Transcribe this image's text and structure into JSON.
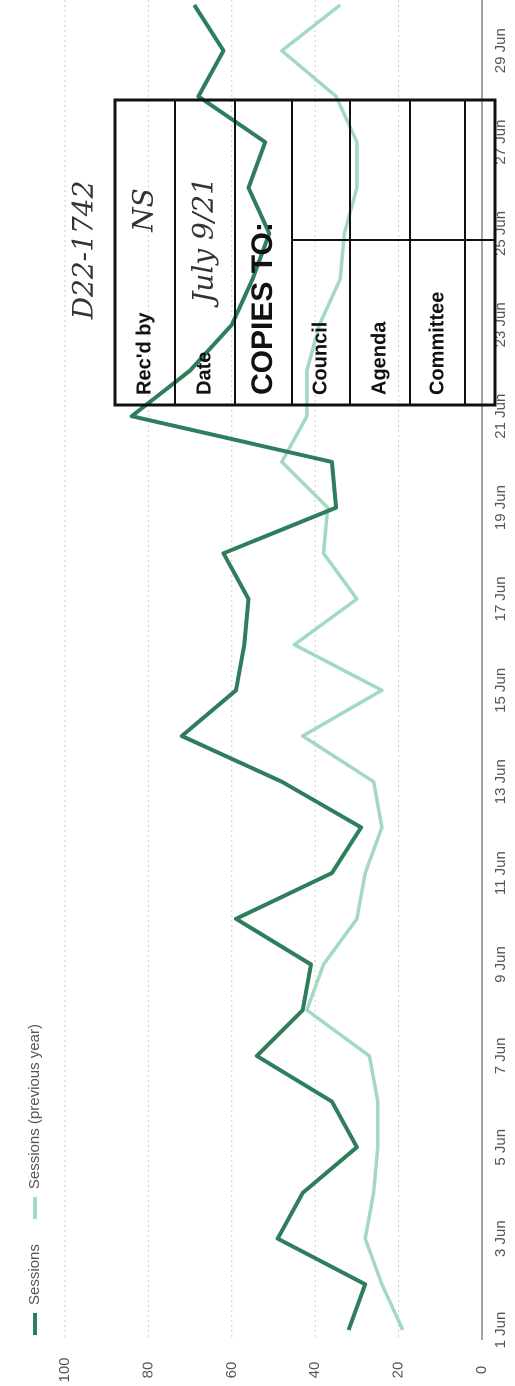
{
  "chart_data": {
    "type": "line",
    "categories": [
      "1 Jun",
      null,
      "3 Jun",
      null,
      "5 Jun",
      null,
      "7 Jun",
      null,
      "9 Jun",
      null,
      "11 Jun",
      null,
      "13 Jun",
      null,
      "15 Jun",
      null,
      "17 Jun",
      null,
      "19 Jun",
      null,
      "21 Jun",
      null,
      "23 Jun",
      null,
      "25 Jun",
      null,
      "27 Jun",
      null,
      "29 Jun",
      null
    ],
    "series": [
      {
        "name": "Sessions",
        "color": "#2e7d5b",
        "values": [
          32,
          28,
          49,
          43,
          30,
          36,
          54,
          43,
          41,
          59,
          36,
          29,
          48,
          72,
          59,
          57,
          56,
          62,
          35,
          36,
          84,
          70,
          60,
          55,
          51,
          56,
          52,
          68,
          62,
          69
        ]
      },
      {
        "name": "Sessions (previous year)",
        "color": "#a3d9c4",
        "values": [
          19,
          24,
          28,
          26,
          25,
          25,
          27,
          42,
          38,
          30,
          28,
          24,
          26,
          43,
          24,
          45,
          30,
          38,
          37,
          48,
          42,
          42,
          39,
          34,
          33,
          30,
          30,
          35,
          48,
          34
        ]
      }
    ],
    "ylim": [
      0,
      100
    ],
    "yticks": [
      0,
      20,
      40,
      60,
      80,
      100
    ],
    "grid": true
  },
  "stamp": {
    "id": "D22-1742",
    "received_label": "Rec'd by",
    "received_by": "NS",
    "date_label": "Date",
    "date": "July 9/21",
    "copies_label": "COPIES TO:",
    "rows": [
      "Council",
      "Agenda",
      "Committee"
    ]
  }
}
